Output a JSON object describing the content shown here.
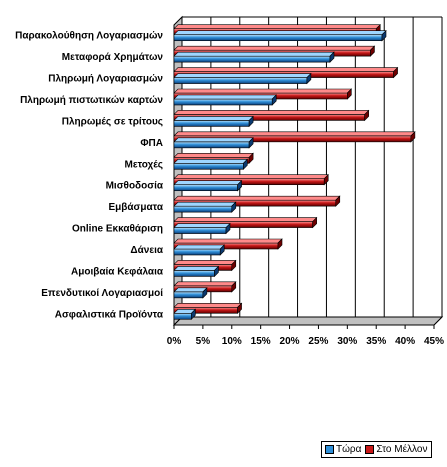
{
  "chart_data": {
    "type": "bar",
    "orientation": "horizontal",
    "categories": [
      "Παρακολούθηση Λογαριασμών",
      "Μεταφορά Χρημάτων",
      "Πληρωμή Λογαριασμών",
      "Πληρωμή πιστωτικών καρτών",
      "Πληρωμές σε τρίτους",
      "ΦΠΑ",
      "Μετοχές",
      "Μισθοδοσία",
      "Εμβάσματα",
      "Online Εκκαθάριση",
      "Δάνεια",
      "Αμοιβαία Κεφάλαια",
      "Επενδυτικοί Λογαριασμοί",
      "Ασφαλιστικά Προϊόντα"
    ],
    "series": [
      {
        "name": "Τώρα",
        "color": "#2f8fd8",
        "values": [
          36,
          27,
          23,
          17,
          13,
          13,
          12,
          11,
          10,
          9,
          8,
          7,
          5,
          3
        ]
      },
      {
        "name": "Στο Μέλλον",
        "color": "#c81818",
        "values": [
          35,
          34,
          38,
          30,
          33,
          41,
          13,
          26,
          28,
          24,
          18,
          10,
          10,
          11
        ]
      }
    ],
    "x_ticks": [
      "0%",
      "5%",
      "10%",
      "15%",
      "20%",
      "25%",
      "30%",
      "35%",
      "40%",
      "45%"
    ],
    "xlim": [
      0,
      45
    ],
    "xlabel": "",
    "ylabel": "",
    "title": "",
    "grid": "vertical",
    "legend_position": "bottom-right"
  }
}
